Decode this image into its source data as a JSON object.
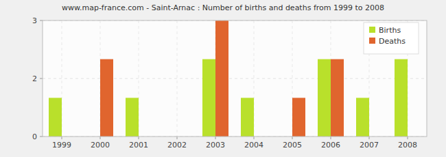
{
  "chart_data": {
    "type": "bar",
    "title": "www.map-france.com - Saint-Arnac : Number of births and deaths from 1999 to 2008",
    "categories": [
      "1999",
      "2000",
      "2001",
      "2002",
      "2003",
      "2004",
      "2005",
      "2006",
      "2007",
      "2008"
    ],
    "series": [
      {
        "name": "Births",
        "color": "#b9e02b",
        "values": [
          1,
          0,
          1,
          0,
          2,
          1,
          0,
          2,
          1,
          2
        ]
      },
      {
        "name": "Deaths",
        "color": "#e0652e",
        "values": [
          0,
          2,
          0,
          0,
          3,
          0,
          1,
          2,
          0,
          0
        ]
      }
    ],
    "ylim": [
      0,
      3
    ],
    "yticks": [
      0,
      {
        "value": 1.5,
        "label": "2"
      },
      3
    ],
    "grid": true,
    "legend": "top-right"
  }
}
